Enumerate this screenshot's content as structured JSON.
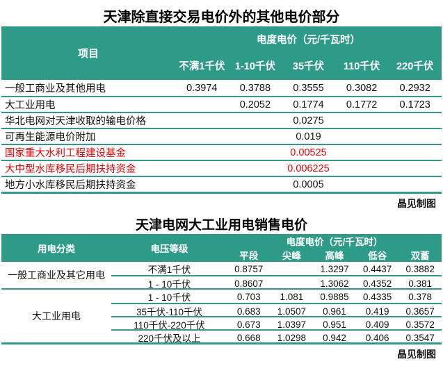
{
  "colors": {
    "teal": "#2e9b88",
    "red": "#ee0000"
  },
  "table1": {
    "title": "天津除直接交易电价外的其他电价部分",
    "header": {
      "item_label": "项目",
      "price_group_label": "电度电价（元/千瓦时）",
      "columns": [
        "不满1千伏",
        "1-10千伏",
        "35千伏",
        "110千伏",
        "220千伏"
      ]
    },
    "rows": [
      {
        "label": "一般工商业及其他用电",
        "values": [
          "0.3974",
          "0.3788",
          "0.3555",
          "0.3082",
          "0.2932"
        ]
      },
      {
        "label": "大工业用电",
        "values": [
          "",
          "0.2052",
          "0.1774",
          "0.1772",
          "0.1723"
        ]
      },
      {
        "label": "华北电网对天津收取的输电价格",
        "span_value": "0.0275"
      },
      {
        "label": "可再生能源电价附加",
        "span_value": "0.019"
      },
      {
        "label": "国家重大水利工程建设基金",
        "span_value": "0.00525",
        "color": "#ee0000"
      },
      {
        "label": "大中型水库移民后期扶持资金",
        "span_value": "0.006225",
        "color": "#ee0000"
      },
      {
        "label": "地方小水库移民后期扶持资金",
        "span_value": "0.0005"
      }
    ],
    "credit": "晶见制图"
  },
  "table2": {
    "title": "天津电网大工业用电销售电价",
    "header": {
      "category_label": "用电分类",
      "voltage_label": "电压等级",
      "price_group_label": "电度电价（元/千瓦时）",
      "columns": [
        "平段",
        "尖峰",
        "高峰",
        "低谷",
        "双蓄"
      ]
    },
    "groups": [
      {
        "label": "一般工商业及其它用电",
        "rows": [
          {
            "voltage": "不满1千伏",
            "values": [
              "0.8757",
              "",
              "1.3297",
              "0.4437",
              "0.3882"
            ]
          },
          {
            "voltage": "1 - 10千伏",
            "values": [
              "0.8607",
              "",
              "1.3062",
              "0.4352",
              "0.381"
            ]
          }
        ]
      },
      {
        "label": "大工业用电",
        "rows": [
          {
            "voltage": "1 - 10千伏",
            "values": [
              "0.703",
              "1.081",
              "0.9885",
              "0.4335",
              "0.378"
            ]
          },
          {
            "voltage": "35千伏-110千伏",
            "values": [
              "0.683",
              "1.0507",
              "0.961",
              "0.419",
              "0.3657"
            ]
          },
          {
            "voltage": "110千伏-220千伏",
            "values": [
              "0.673",
              "1.0397",
              "0.951",
              "0.409",
              "0.3572"
            ]
          },
          {
            "voltage": "220千伏及以上",
            "values": [
              "0.668",
              "1.0298",
              "0.942",
              "0.406",
              "0.3547"
            ]
          }
        ]
      }
    ],
    "credit": "晶见制图"
  },
  "chart_data": [
    {
      "type": "table",
      "title": "天津除直接交易电价外的其他电价部分",
      "unit": "元/千瓦时",
      "columns": [
        "项目",
        "不满1千伏",
        "1-10千伏",
        "35千伏",
        "110千伏",
        "220千伏"
      ],
      "rows": [
        [
          "一般工商业及其他用电",
          0.3974,
          0.3788,
          0.3555,
          0.3082,
          0.2932
        ],
        [
          "大工业用电",
          null,
          0.2052,
          0.1774,
          0.1772,
          0.1723
        ],
        [
          "华北电网对天津收取的输电价格",
          0.0275
        ],
        [
          "可再生能源电价附加",
          0.019
        ],
        [
          "国家重大水利工程建设基金",
          0.00525
        ],
        [
          "大中型水库移民后期扶持资金",
          0.006225
        ],
        [
          "地方小水库移民后期扶持资金",
          0.0005
        ]
      ]
    },
    {
      "type": "table",
      "title": "天津电网大工业用电销售电价",
      "unit": "元/千瓦时",
      "columns": [
        "用电分类",
        "电压等级",
        "平段",
        "尖峰",
        "高峰",
        "低谷",
        "双蓄"
      ],
      "rows": [
        [
          "一般工商业及其它用电",
          "不满1千伏",
          0.8757,
          null,
          1.3297,
          0.4437,
          0.3882
        ],
        [
          "一般工商业及其它用电",
          "1 - 10千伏",
          0.8607,
          null,
          1.3062,
          0.4352,
          0.381
        ],
        [
          "大工业用电",
          "1 - 10千伏",
          0.703,
          1.081,
          0.9885,
          0.4335,
          0.378
        ],
        [
          "大工业用电",
          "35千伏-110千伏",
          0.683,
          1.0507,
          0.961,
          0.419,
          0.3657
        ],
        [
          "大工业用电",
          "110千伏-220千伏",
          0.673,
          1.0397,
          0.951,
          0.409,
          0.3572
        ],
        [
          "大工业用电",
          "220千伏及以上",
          0.668,
          1.0298,
          0.942,
          0.406,
          0.3547
        ]
      ]
    }
  ]
}
